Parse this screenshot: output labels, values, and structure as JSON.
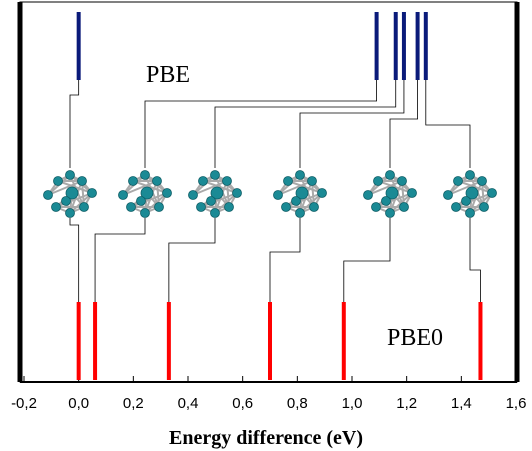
{
  "chart_data": {
    "type": "event-lines",
    "xlabel": "Energy difference (eV)",
    "xlim": [
      -0.2,
      1.6
    ],
    "xticks": [
      {
        "value": -0.2,
        "label": "-0,2"
      },
      {
        "value": 0,
        "label": "0,0"
      },
      {
        "value": 0.2,
        "label": "0,2"
      },
      {
        "value": 0.4,
        "label": "0,4"
      },
      {
        "value": 0.6,
        "label": "0,6"
      },
      {
        "value": 0.8,
        "label": "0,8"
      },
      {
        "value": 1.0,
        "label": "1,0"
      },
      {
        "value": 1.2,
        "label": "1,2"
      },
      {
        "value": 1.4,
        "label": "1,4"
      },
      {
        "value": 1.6,
        "label": "1,6"
      }
    ],
    "series": [
      {
        "name": "PBE",
        "color": "#0a1a7a",
        "values": [
          0.0,
          1.09,
          1.16,
          1.19,
          1.24,
          1.27
        ]
      },
      {
        "name": "PBE0",
        "color": "#ff0000",
        "values": [
          0.0,
          0.06,
          0.33,
          0.7,
          0.97,
          1.47
        ]
      }
    ]
  }
}
